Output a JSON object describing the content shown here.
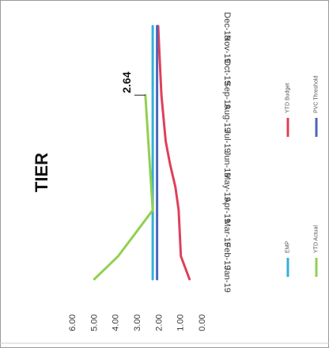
{
  "chart_data": {
    "type": "line",
    "title": "TIER",
    "categories": [
      "Jan-19",
      "Feb-19",
      "Mar-19",
      "Apr-19",
      "May-19",
      "Jun-19",
      "Jul-19",
      "Aug-19",
      "Sep-19",
      "Oct-19",
      "Nov-19",
      "Dec-19"
    ],
    "ylim": [
      0,
      6
    ],
    "yticks": [
      "0.00",
      "1.00",
      "2.00",
      "3.00",
      "4.00",
      "5.00",
      "6.00"
    ],
    "grid": false,
    "legend_position": "right",
    "series": [
      {
        "name": "EMP",
        "color": "#33b0d8",
        "values": [
          2.3,
          2.3,
          2.3,
          2.3,
          2.3,
          2.3,
          2.3,
          2.3,
          2.3,
          2.3,
          2.3,
          2.3
        ]
      },
      {
        "name": "YTD Actual",
        "color": "#92d050",
        "values": [
          5.0,
          3.9,
          3.1,
          2.3,
          null,
          null,
          null,
          null,
          2.64,
          null,
          null,
          null
        ]
      },
      {
        "name": "YTD Budget",
        "color": "#e0405a",
        "values": [
          0.6,
          1.0,
          1.05,
          1.1,
          1.25,
          1.5,
          1.7,
          1.8,
          1.9,
          1.95,
          2.0,
          2.05
        ]
      },
      {
        "name": "PVC Threshold",
        "color": "#4a67b8",
        "values": [
          2.1,
          2.1,
          2.1,
          2.1,
          2.1,
          2.1,
          2.1,
          2.1,
          2.1,
          2.1,
          2.1,
          2.1
        ]
      }
    ],
    "annotations": [
      {
        "text": "2.64",
        "series": "YTD Actual",
        "category": "Sep-19"
      }
    ]
  }
}
